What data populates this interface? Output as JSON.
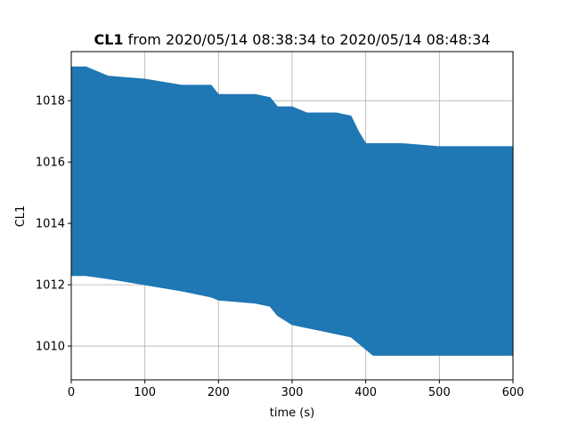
{
  "chart_data": {
    "type": "area",
    "title_bold": "CL1",
    "title_rest": " from 2020/05/14 08:38:34 to 2020/05/14 08:48:34",
    "xlabel": "time (s)",
    "ylabel": "CL1",
    "xlim": [
      0,
      600
    ],
    "ylim": [
      1008.9,
      1019.6
    ],
    "xticks": [
      0,
      100,
      200,
      300,
      400,
      500,
      600
    ],
    "yticks": [
      1010,
      1012,
      1014,
      1016,
      1018
    ],
    "grid": true,
    "color": "#1f77b4",
    "series": [
      {
        "x": [
          0,
          20,
          50,
          100,
          150,
          190,
          200,
          250,
          270,
          280,
          300,
          320,
          340,
          360,
          380,
          390,
          400,
          410,
          450,
          500,
          550,
          600
        ],
        "upper": [
          1019.1,
          1019.1,
          1018.8,
          1018.7,
          1018.5,
          1018.5,
          1018.2,
          1018.2,
          1018.1,
          1017.8,
          1017.8,
          1017.6,
          1017.6,
          1017.6,
          1017.5,
          1017.0,
          1016.6,
          1016.6,
          1016.6,
          1016.5,
          1016.5,
          1016.5
        ],
        "lower": [
          1012.3,
          1012.3,
          1012.2,
          1012.0,
          1011.8,
          1011.6,
          1011.5,
          1011.4,
          1011.3,
          1011.0,
          1010.7,
          1010.6,
          1010.5,
          1010.4,
          1010.3,
          1010.1,
          1009.9,
          1009.7,
          1009.7,
          1009.7,
          1009.7,
          1009.7
        ]
      }
    ]
  }
}
